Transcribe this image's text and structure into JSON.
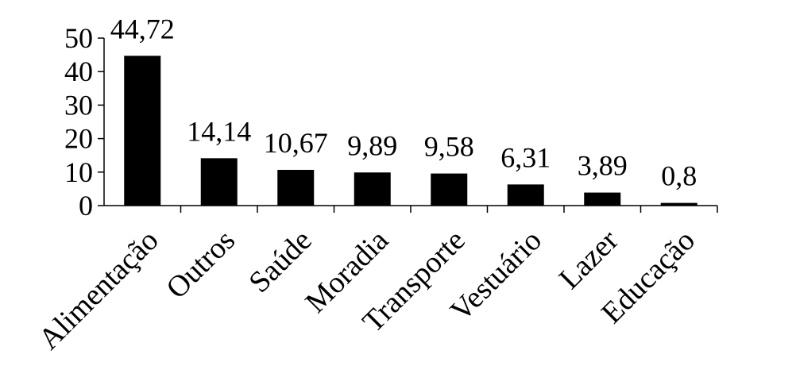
{
  "chart_data": {
    "type": "bar",
    "categories": [
      "Alimentação",
      "Outros",
      "Saúde",
      "Moradia",
      "Transporte",
      "Vestuário",
      "Lazer",
      "Educação"
    ],
    "values": [
      44.72,
      14.14,
      10.67,
      9.89,
      9.58,
      6.31,
      3.89,
      0.8
    ],
    "data_labels": [
      "44,72",
      "14,14",
      "10,67",
      "9,89",
      "9,58",
      "6,31",
      "3,89",
      "0,8"
    ],
    "yticks": [
      0,
      10,
      20,
      30,
      40,
      50
    ],
    "ylim": [
      0,
      50
    ],
    "grid": false,
    "legend": "none",
    "bar_color": "#000000",
    "axis_color": "#000000"
  }
}
